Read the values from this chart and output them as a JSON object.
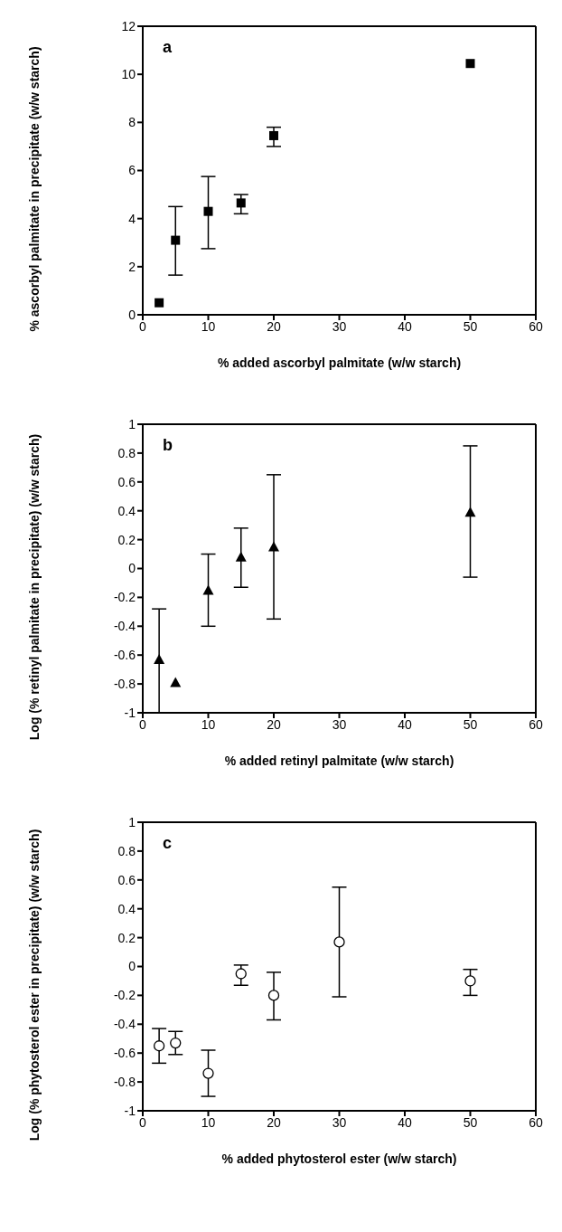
{
  "chart_data": [
    {
      "type": "scatter",
      "annotations": [
        "a"
      ],
      "xlabel": "% added ascorbyl palmitate (w/w starch)",
      "ylabel": "% ascorbyl palmitate in precipitate (w/w starch)",
      "x": [
        2.5,
        5,
        10,
        15,
        20,
        50
      ],
      "values": [
        0.5,
        3.1,
        4.3,
        4.65,
        7.45,
        10.45
      ],
      "errors": [
        null,
        [
          1.65,
          4.5
        ],
        [
          2.75,
          5.75
        ],
        [
          4.2,
          5.0
        ],
        [
          7.0,
          7.8
        ],
        null
      ],
      "color": "#000000",
      "marker": "square",
      "xlim": [
        0,
        60
      ],
      "xticks": [
        0,
        10,
        20,
        30,
        40,
        50,
        60
      ],
      "ylim": [
        0,
        12
      ],
      "yticks": [
        0,
        2,
        4,
        6,
        8,
        10,
        12
      ]
    },
    {
      "type": "scatter",
      "annotations": [
        "b"
      ],
      "xlabel": "% added retinyl palmitate (w/w starch)",
      "ylabel": "Log (% retinyl palmitate in precipitate) (w/w starch)",
      "x": [
        2.5,
        5,
        10,
        15,
        20,
        50
      ],
      "values": [
        -0.63,
        -0.79,
        -0.15,
        0.08,
        0.15,
        0.39
      ],
      "errors": [
        [
          -1.0,
          -0.28
        ],
        null,
        [
          -0.4,
          0.1
        ],
        [
          -0.13,
          0.28
        ],
        [
          -0.35,
          0.65
        ],
        [
          -0.06,
          0.85
        ]
      ],
      "color": "#000000",
      "marker": "triangle",
      "xlim": [
        0,
        60
      ],
      "xticks": [
        0,
        10,
        20,
        30,
        40,
        50,
        60
      ],
      "ylim": [
        -1,
        1
      ],
      "yticks": [
        -1,
        -0.8,
        -0.6,
        -0.4,
        -0.2,
        0,
        0.2,
        0.4,
        0.6,
        0.8,
        1
      ]
    },
    {
      "type": "scatter",
      "annotations": [
        "c"
      ],
      "xlabel": "% added phytosterol ester (w/w starch)",
      "ylabel": "Log (% phytosterol ester in precipitate) (w/w starch)",
      "x": [
        2.5,
        5,
        10,
        15,
        20,
        30,
        50
      ],
      "values": [
        -0.55,
        -0.53,
        -0.74,
        -0.05,
        -0.2,
        0.17,
        -0.1
      ],
      "errors": [
        [
          -0.67,
          -0.43
        ],
        [
          -0.61,
          -0.45
        ],
        [
          -0.9,
          -0.58
        ],
        [
          -0.13,
          0.01
        ],
        [
          -0.37,
          -0.04
        ],
        [
          -0.21,
          0.55
        ],
        [
          -0.2,
          -0.02
        ]
      ],
      "color": "#000000",
      "marker": "circle",
      "xlim": [
        0,
        60
      ],
      "xticks": [
        0,
        10,
        20,
        30,
        40,
        50,
        60
      ],
      "ylim": [
        -1,
        1
      ],
      "yticks": [
        -1,
        -0.8,
        -0.6,
        -0.4,
        -0.2,
        0,
        0.2,
        0.4,
        0.6,
        0.8,
        1
      ]
    }
  ]
}
